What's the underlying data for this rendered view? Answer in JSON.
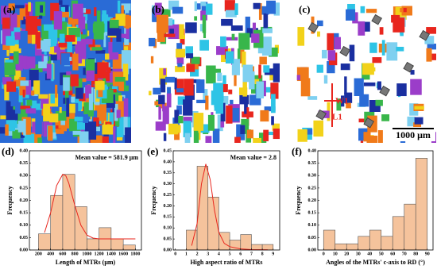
{
  "panels": {
    "labels": [
      "(a)",
      "(b)",
      "(c)"
    ],
    "annotations": [
      "W1",
      "L1"
    ],
    "scale_bar": "1000 μm"
  },
  "chart_data": [
    {
      "type": "histogram",
      "panel": "(d)",
      "annotation": "Mean value = 581.9 μm",
      "x_label": "Length of MTRs (μm)",
      "y_label": "Frequency",
      "bins": [
        200,
        400,
        600,
        800,
        1000,
        1200,
        1400,
        1600,
        1800
      ],
      "values": [
        0.065,
        0.22,
        0.305,
        0.175,
        0.045,
        0.09,
        0.045,
        0.02
      ],
      "color": "#f5c39c",
      "fit": {
        "color": "#e8261e",
        "x": [
          300,
          400,
          500,
          600,
          650,
          700,
          800,
          900,
          1000,
          1100,
          1200,
          1400,
          1600,
          1800
        ],
        "values": [
          0.07,
          0.15,
          0.26,
          0.305,
          0.3,
          0.27,
          0.18,
          0.1,
          0.06,
          0.048,
          0.045,
          0.045,
          0.045,
          0.045
        ]
      },
      "xlim": [
        50,
        1900
      ],
      "xticks": [
        200,
        400,
        600,
        800,
        1000,
        1200,
        1400,
        1600,
        1800
      ],
      "ylim": [
        0,
        0.4
      ],
      "yticks": [
        {
          "value": 0,
          "label": "0.00"
        },
        {
          "value": 0.05,
          "label": "0.05"
        },
        {
          "value": 0.1,
          "label": "0.10"
        },
        {
          "value": 0.15,
          "label": "0.15"
        },
        {
          "value": 0.2,
          "label": "0.20"
        },
        {
          "value": 0.25,
          "label": "0.25"
        },
        {
          "value": 0.3,
          "label": "0.30"
        },
        {
          "value": 0.35,
          "label": "0.35"
        },
        {
          "value": 0.4,
          "label": "0.40"
        }
      ]
    },
    {
      "type": "histogram",
      "panel": "(e)",
      "annotation": "Mean value = 2.8",
      "x_label": "High aspect ratio of MTRs",
      "y_label": "Frequency",
      "bins": [
        1,
        2,
        3,
        4,
        5,
        6,
        7,
        8,
        9
      ],
      "values": [
        0.09,
        0.38,
        0.24,
        0.08,
        0.045,
        0.07,
        0.025,
        0.025
      ],
      "color": "#f5c39c",
      "fit": {
        "color": "#e8261e",
        "x": [
          1.5,
          2,
          2.4,
          2.8,
          3.2,
          3.6,
          4,
          4.5,
          5,
          6,
          7,
          8.5
        ],
        "values": [
          0.02,
          0.12,
          0.3,
          0.39,
          0.32,
          0.18,
          0.08,
          0.03,
          0.015,
          0.005,
          0.002,
          0.001
        ]
      },
      "xlim": [
        -0.2,
        9.6
      ],
      "xticks": [
        0,
        1,
        2,
        3,
        4,
        5,
        6,
        7,
        8,
        9
      ],
      "ylim": [
        0,
        0.45
      ],
      "yticks": [
        {
          "value": 0,
          "label": "0.00"
        },
        {
          "value": 0.05,
          "label": "0.05"
        },
        {
          "value": 0.1,
          "label": "0.10"
        },
        {
          "value": 0.15,
          "label": "0.15"
        },
        {
          "value": 0.2,
          "label": "0.20"
        },
        {
          "value": 0.25,
          "label": "0.25"
        },
        {
          "value": 0.3,
          "label": "0.30"
        },
        {
          "value": 0.35,
          "label": "0.35"
        },
        {
          "value": 0.4,
          "label": "0.40"
        },
        {
          "value": 0.45,
          "label": "0.45"
        }
      ]
    },
    {
      "type": "histogram",
      "panel": "(f)",
      "x_label": "Angles of the MTRs' c-axis to RD (°)",
      "y_label": "Frequency",
      "bins": [
        0,
        10,
        20,
        30,
        40,
        50,
        60,
        70,
        80,
        90
      ],
      "values": [
        0.08,
        0.025,
        0.025,
        0.055,
        0.08,
        0.055,
        0.135,
        0.185,
        0.37
      ],
      "color": "#f5c39c",
      "xlim": [
        -5,
        95
      ],
      "xticks": [
        0,
        10,
        20,
        30,
        40,
        50,
        60,
        70,
        80,
        90
      ],
      "ylim": [
        0,
        0.4
      ],
      "yticks": [
        {
          "value": 0,
          "label": "0.00"
        },
        {
          "value": 0.05,
          "label": "0.05"
        },
        {
          "value": 0.1,
          "label": "0.10"
        },
        {
          "value": 0.15,
          "label": "0.15"
        },
        {
          "value": 0.2,
          "label": "0.20"
        },
        {
          "value": 0.25,
          "label": "0.25"
        },
        {
          "value": 0.3,
          "label": "0.30"
        },
        {
          "value": 0.35,
          "label": "0.35"
        },
        {
          "value": 0.4,
          "label": "0.40"
        }
      ]
    }
  ]
}
